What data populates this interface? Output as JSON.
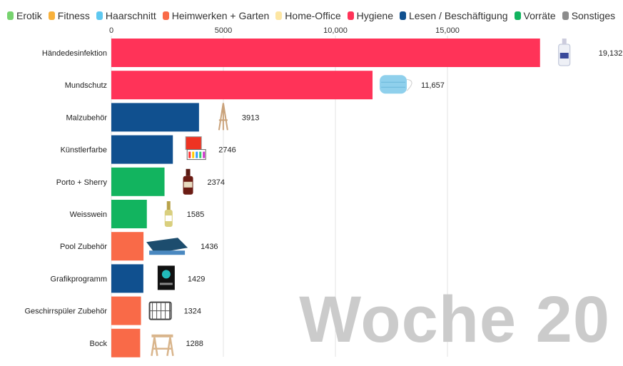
{
  "legend": [
    {
      "label": "Erotik",
      "color": "#77d36f"
    },
    {
      "label": "Fitness",
      "color": "#f8b13b"
    },
    {
      "label": "Haarschnitt",
      "color": "#5ec8f0"
    },
    {
      "label": "Heimwerken + Garten",
      "color": "#f96a48"
    },
    {
      "label": "Home-Office",
      "color": "#fde6a3"
    },
    {
      "label": "Hygiene",
      "color": "#ff3358"
    },
    {
      "label": "Lesen / Beschäftigung",
      "color": "#10508f"
    },
    {
      "label": "Vorräte",
      "color": "#12b45f"
    },
    {
      "label": "Sonstiges",
      "color": "#8c8c8c"
    }
  ],
  "week_label": "Woche 20",
  "chart_data": {
    "type": "bar",
    "orientation": "horizontal",
    "xlim": [
      0,
      19132
    ],
    "x_ticks": [
      0,
      5000,
      10000,
      15000
    ],
    "x_tick_labels": [
      "0",
      "5000",
      "10,000",
      "15,000"
    ],
    "grid": true,
    "legend_position": "top",
    "categories": [
      "Händedesinfektion",
      "Mundschutz",
      "Malzubehör",
      "Künstlerfarbe",
      "Porto + Sherry",
      "Weisswein",
      "Pool Zubehör",
      "Grafikprogramm",
      "Geschirrspüler Zubehör",
      "Bock"
    ],
    "values": [
      19132,
      11657,
      3913,
      2746,
      2374,
      1585,
      1436,
      1429,
      1324,
      1288
    ],
    "value_labels": [
      "19,132",
      "11,657",
      "3913",
      "2746",
      "2374",
      "1585",
      "1436",
      "1429",
      "1324",
      "1288"
    ],
    "groups": [
      "Hygiene",
      "Hygiene",
      "Lesen / Beschäftigung",
      "Lesen / Beschäftigung",
      "Vorräte",
      "Vorräte",
      "Heimwerken + Garten",
      "Lesen / Beschäftigung",
      "Heimwerken + Garten",
      "Heimwerken + Garten"
    ],
    "icons": [
      "sanitizer-bottle-icon",
      "face-mask-icon",
      "easel-icon",
      "paint-set-icon",
      "port-bottle-icon",
      "wine-bottle-icon",
      "pool-cover-icon",
      "software-box-icon",
      "cutlery-basket-icon",
      "sawhorse-icon"
    ]
  }
}
